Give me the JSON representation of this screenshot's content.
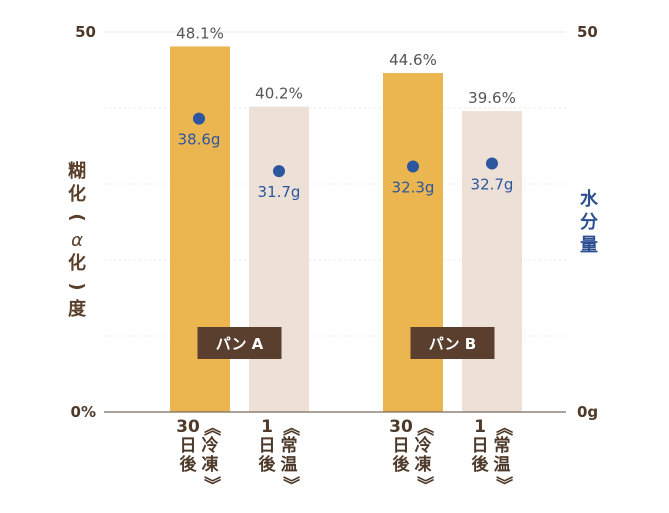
{
  "chart_data": {
    "type": "bar",
    "groups": [
      "パン A",
      "パン B"
    ],
    "categories": [
      "30日後《冷凍》",
      "1日後《常温》",
      "30日後《冷凍》",
      "1日後《常温》"
    ],
    "bar_group": [
      0,
      0,
      1,
      1
    ],
    "bar_colors": [
      "#ebb64f",
      "#ede1d7",
      "#ebb64f",
      "#ede1d7"
    ],
    "series": [
      {
        "name": "糊化(α化)度",
        "axis": "left",
        "values": [
          48.1,
          40.2,
          44.6,
          39.6
        ],
        "labels": [
          "48.1%",
          "40.2%",
          "44.6%",
          "39.6%"
        ]
      },
      {
        "name": "水分量",
        "axis": "right",
        "values": [
          38.6,
          31.7,
          32.3,
          32.7
        ],
        "labels": [
          "38.6g",
          "31.7g",
          "32.3g",
          "32.7g"
        ],
        "color": "#2c56a0"
      }
    ],
    "left_axis": {
      "label": "糊化(α化)度",
      "ylim": [
        0,
        50
      ],
      "tick_labels": [
        "0%",
        "50"
      ]
    },
    "right_axis": {
      "label": "水分量",
      "ylim": [
        0,
        50
      ],
      "tick_labels": [
        "0g",
        "50"
      ]
    },
    "grid": true,
    "colors": {
      "label_text": "#4e3a2a",
      "moisture": "#2c56a0",
      "group_badge": "#5a3f2e",
      "value_text": "#555555"
    }
  },
  "category_lines": [
    {
      "main": [
        "30",
        "日",
        "後"
      ],
      "note": [
        "《",
        "冷",
        "凍",
        "》"
      ]
    },
    {
      "main": [
        "1",
        "日",
        "後"
      ],
      "note": [
        "《",
        "常",
        "温",
        "》"
      ]
    },
    {
      "main": [
        "30",
        "日",
        "後"
      ],
      "note": [
        "《",
        "冷",
        "凍",
        "》"
      ]
    },
    {
      "main": [
        "1",
        "日",
        "後"
      ],
      "note": [
        "《",
        "常",
        "温",
        "》"
      ]
    }
  ]
}
